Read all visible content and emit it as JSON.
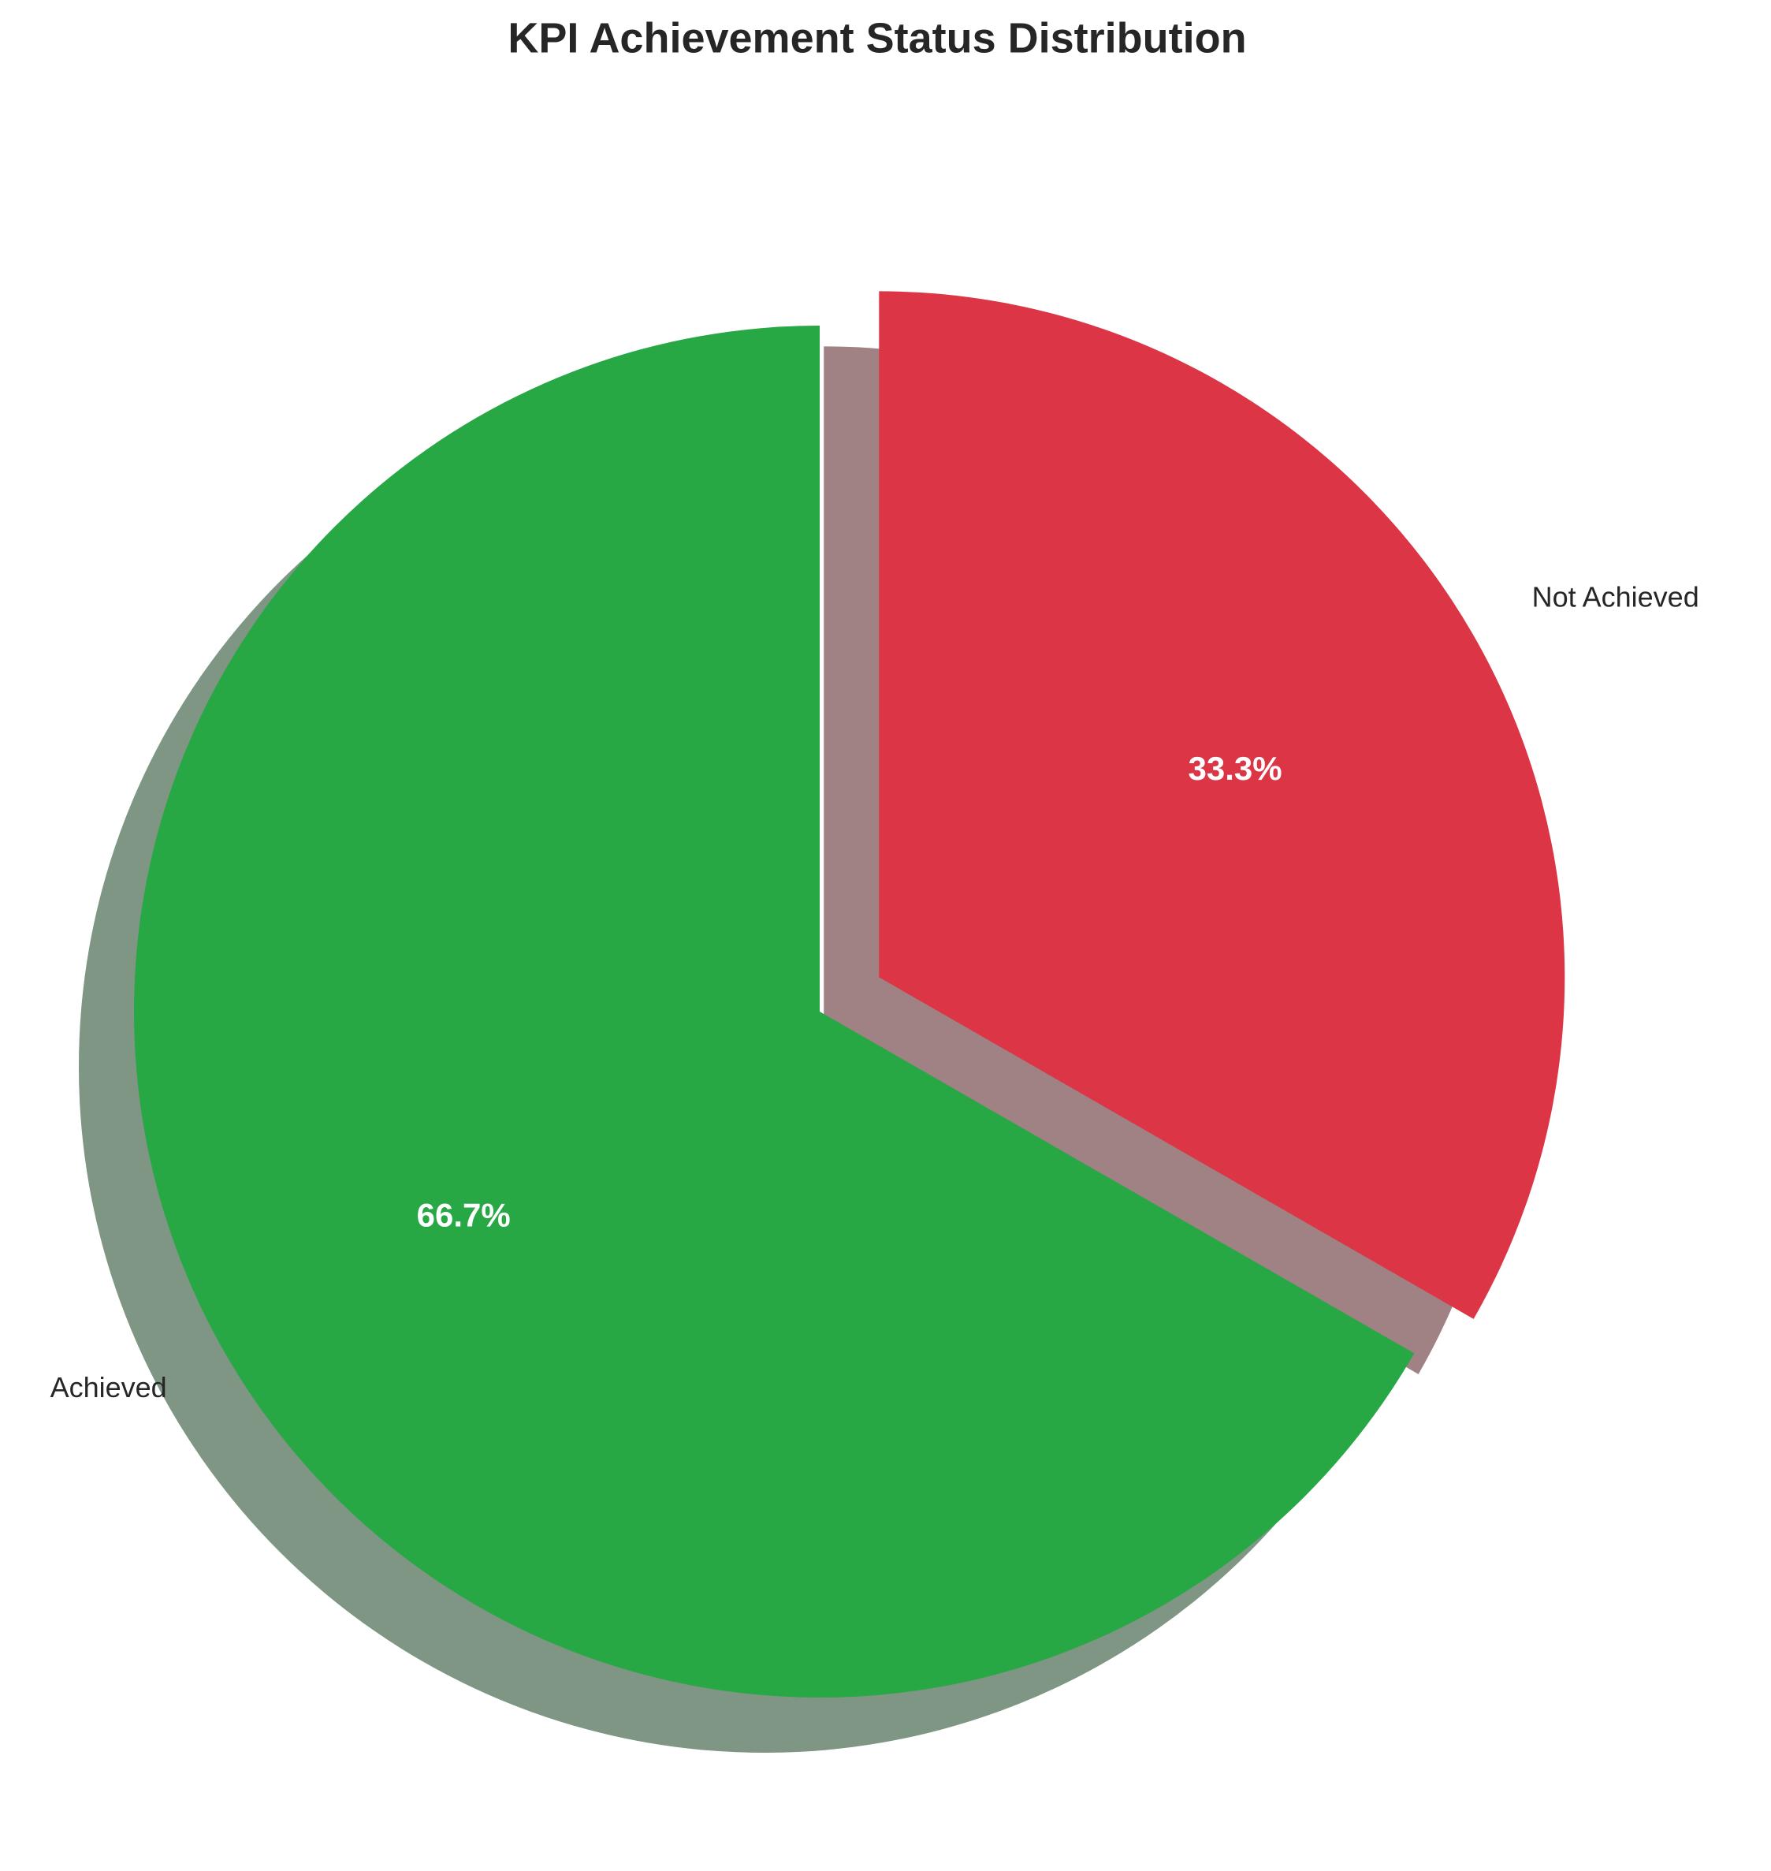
{
  "chart_data": {
    "type": "pie",
    "title": "KPI Achievement Status Distribution",
    "categories": [
      "Achieved",
      "Not Achieved"
    ],
    "values": [
      66.7,
      33.3
    ],
    "value_labels": [
      "66.7%",
      "33.3%"
    ],
    "colors": [
      "#28a745",
      "#dc3545"
    ],
    "explode": [
      0,
      0.1
    ],
    "startangle": 90,
    "shadow": true
  }
}
